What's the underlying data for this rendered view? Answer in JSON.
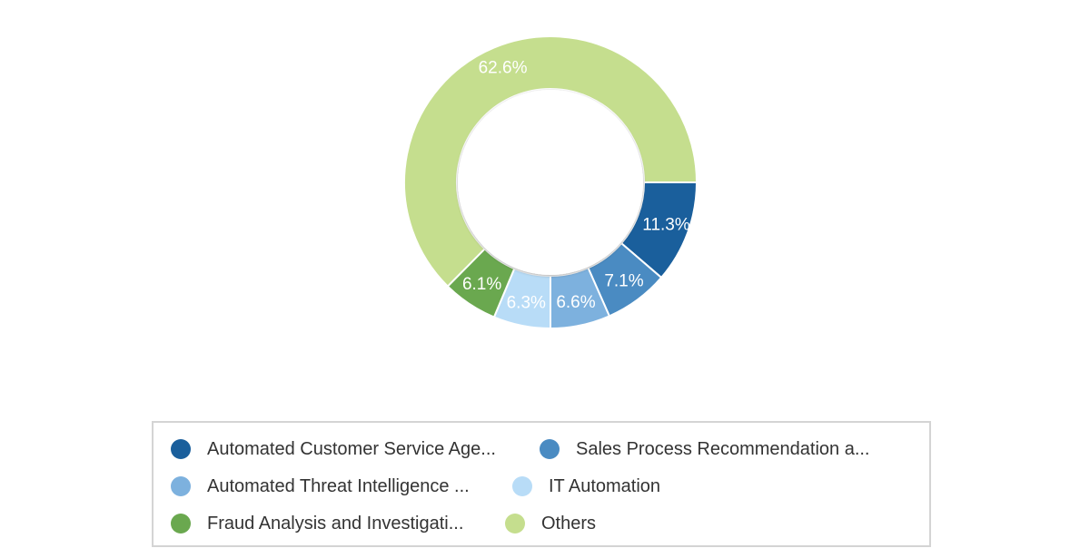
{
  "chart_data": {
    "type": "pie",
    "variant": "donut",
    "categories": [
      "Automated Customer Service Age...",
      "Sales Process Recommendation a...",
      "Automated Threat Intelligence ...",
      "IT Automation",
      "Fraud Analysis and Investigati...",
      "Others"
    ],
    "values": [
      11.3,
      7.1,
      6.6,
      6.3,
      6.1,
      62.6
    ],
    "value_labels": [
      "11.3%",
      "7.1%",
      "6.6%",
      "6.3%",
      "6.1%",
      "62.6%"
    ],
    "colors": [
      "#1a5f9c",
      "#4a8bc2",
      "#7db1de",
      "#b8dcf7",
      "#6aa84f",
      "#c5de8e"
    ],
    "legend_placement": "bottom"
  }
}
